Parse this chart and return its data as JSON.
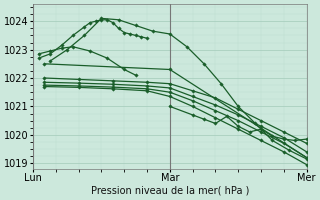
{
  "title": "",
  "xlabel": "Pression niveau de la mer( hPa )",
  "ylabel": "",
  "bg_color": "#cce8dc",
  "grid_color_major": "#aacfbf",
  "grid_color_minor": "#bcddd0",
  "line_color": "#1a5e2a",
  "xlim": [
    0,
    48
  ],
  "ylim": [
    1018.8,
    1024.6
  ],
  "yticks": [
    1019,
    1020,
    1021,
    1022,
    1023,
    1024
  ],
  "xtick_positions": [
    0,
    24,
    48
  ],
  "xtick_labels": [
    "Lun",
    "Mar",
    "Mer"
  ],
  "vlines": [
    0,
    24,
    48
  ],
  "series": [
    {
      "x": [
        1,
        3,
        5,
        7,
        9,
        10,
        11,
        12,
        13,
        14,
        15,
        16,
        17,
        18,
        19,
        20
      ],
      "y": [
        1022.7,
        1022.85,
        1023.15,
        1023.5,
        1023.8,
        1023.95,
        1024.0,
        1024.05,
        1024.05,
        1023.95,
        1023.75,
        1023.6,
        1023.55,
        1023.5,
        1023.45,
        1023.4
      ]
    },
    {
      "x": [
        3,
        6,
        9,
        12,
        15,
        18,
        21,
        24,
        27,
        30,
        33,
        36,
        39,
        42,
        45,
        48
      ],
      "y": [
        1022.6,
        1023.0,
        1023.5,
        1024.1,
        1024.05,
        1023.85,
        1023.65,
        1023.55,
        1023.1,
        1022.5,
        1021.8,
        1021.0,
        1020.4,
        1019.8,
        1019.45,
        1019.15
      ]
    },
    {
      "x": [
        2,
        24,
        48
      ],
      "y": [
        1022.5,
        1022.3,
        1019.2
      ]
    },
    {
      "x": [
        2,
        8,
        14,
        20,
        24,
        28,
        32,
        36,
        40,
        44,
        48
      ],
      "y": [
        1022.0,
        1021.95,
        1021.9,
        1021.85,
        1021.8,
        1021.55,
        1021.3,
        1020.9,
        1020.5,
        1020.1,
        1019.7
      ]
    },
    {
      "x": [
        2,
        8,
        14,
        20,
        24,
        28,
        32,
        36,
        40,
        44,
        48
      ],
      "y": [
        1021.85,
        1021.82,
        1021.78,
        1021.72,
        1021.65,
        1021.35,
        1021.05,
        1020.7,
        1020.3,
        1019.9,
        1019.4
      ]
    },
    {
      "x": [
        2,
        8,
        14,
        20,
        24,
        28,
        32,
        36,
        40,
        44,
        48
      ],
      "y": [
        1021.75,
        1021.72,
        1021.68,
        1021.62,
        1021.5,
        1021.2,
        1020.85,
        1020.5,
        1020.1,
        1019.7,
        1019.2
      ]
    },
    {
      "x": [
        2,
        8,
        14,
        20,
        24,
        28,
        32,
        36,
        40,
        44,
        48
      ],
      "y": [
        1021.7,
        1021.67,
        1021.62,
        1021.55,
        1021.35,
        1021.0,
        1020.6,
        1020.2,
        1019.8,
        1019.4,
        1018.95
      ]
    },
    {
      "x": [
        1,
        3,
        5,
        7,
        10,
        13,
        16,
        18
      ],
      "y": [
        1022.85,
        1022.95,
        1023.05,
        1023.1,
        1022.95,
        1022.7,
        1022.3,
        1022.1
      ]
    },
    {
      "x": [
        24,
        28,
        30,
        32,
        34,
        36,
        38,
        40,
        42,
        44,
        46,
        48
      ],
      "y": [
        1021.0,
        1020.7,
        1020.55,
        1020.4,
        1020.65,
        1020.3,
        1020.1,
        1020.2,
        1019.95,
        1019.85,
        1019.8,
        1019.85
      ]
    }
  ]
}
